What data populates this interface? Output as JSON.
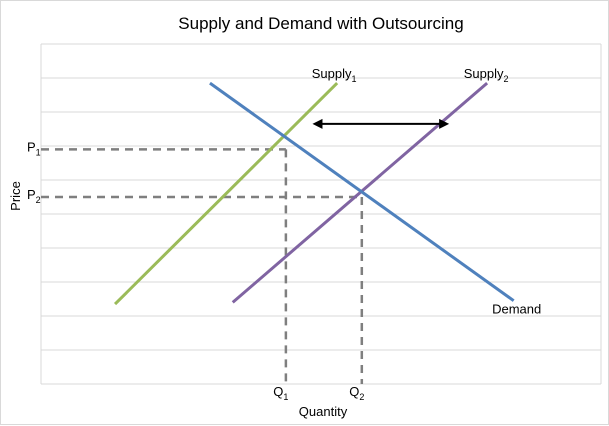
{
  "chart_data": {
    "type": "line",
    "title": "Supply and Demand with Outsourcing",
    "xlabel": "Quantity",
    "ylabel": "Price",
    "grid": true,
    "legend": "none",
    "series": [
      {
        "name": "Supply",
        "subscript": "1",
        "color": "#9bbb59",
        "points": [
          [
            1.0,
            2.35
          ],
          [
            6.85,
            8.85
          ]
        ]
      },
      {
        "name": "Supply",
        "subscript": "2",
        "color": "#8064a2",
        "points": [
          [
            4.1,
            2.4
          ],
          [
            10.8,
            8.85
          ]
        ]
      },
      {
        "name": "Demand",
        "subscript": "",
        "color": "#4f81bd",
        "points": [
          [
            3.5,
            8.85
          ],
          [
            11.5,
            2.45
          ]
        ]
      }
    ],
    "equilibria": [
      {
        "price_label": "P",
        "price_sub": "1",
        "quantity_label": "Q",
        "quantity_sub": "1",
        "x": 5.5,
        "y": 6.9
      },
      {
        "price_label": "P",
        "price_sub": "2",
        "quantity_label": "Q",
        "quantity_sub": "2",
        "x": 7.5,
        "y": 5.5
      }
    ],
    "shift_arrow": {
      "from": [
        6.2,
        7.65
      ],
      "to": [
        9.8,
        7.65
      ],
      "color": "#000000"
    },
    "guide_color": "#7f7f7f",
    "grid_color": "#d9d9d9",
    "xlim": [
      -0.95,
      13.8
    ],
    "ylim": [
      0,
      10
    ]
  }
}
